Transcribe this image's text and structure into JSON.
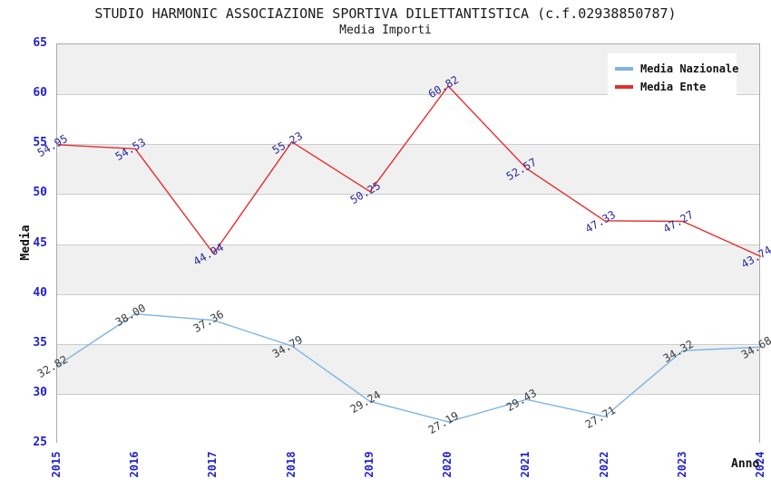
{
  "title": "STUDIO HARMONIC ASSOCIAZIONE SPORTIVA DILETTANTISTICA (c.f.02938850787)",
  "subtitle": "Media Importi",
  "chart_data": {
    "type": "line",
    "x": [
      "2015",
      "2016",
      "2017",
      "2018",
      "2019",
      "2020",
      "2021",
      "2022",
      "2023",
      "2024"
    ],
    "series": [
      {
        "name": "Media Nazionale",
        "color": "#7db4e4",
        "label_color": "#3a3a3a",
        "values": [
          32.82,
          38.0,
          37.36,
          34.79,
          29.24,
          27.19,
          29.43,
          27.71,
          34.32,
          34.68
        ]
      },
      {
        "name": "Media Ente",
        "color": "#e62e2e",
        "label_color": "#28289e",
        "values": [
          54.95,
          54.53,
          44.04,
          55.23,
          50.25,
          60.82,
          52.57,
          47.33,
          47.27,
          43.74
        ]
      }
    ],
    "xlabel": "Anno",
    "ylabel": "Media",
    "ylim": [
      25,
      65
    ],
    "yticks": [
      65,
      60,
      55,
      50,
      45,
      40,
      35,
      30,
      25
    ],
    "grid": true,
    "legend_position": "top-right",
    "band_colors": [
      "#f0f0f0",
      "#ffffff"
    ],
    "grid_color": "#cccccc",
    "tick_color": "#2222cc"
  }
}
